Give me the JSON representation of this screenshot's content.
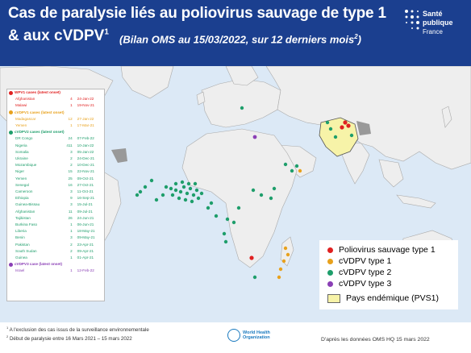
{
  "header": {
    "title_line1": "Cas de paralysie liés au poliovirus sauvage de type 1",
    "title_line2": "& aux cVDPV",
    "title_sup": "1",
    "subtitle": "(Bilan OMS au 15/03/2022, sur 12 derniers mois",
    "subtitle_sup": "2",
    "subtitle_end": ")",
    "logo": {
      "line1": "Santé",
      "line2": "publique",
      "line3": "France"
    }
  },
  "colors": {
    "header_bg": "#1b3f8f",
    "wpv1": "#e02020",
    "cvdpv1": "#e8a11c",
    "cvdpv2": "#1e9e6b",
    "cvdpv3": "#8a3fb5",
    "endemic": "#f7f3a8"
  },
  "legend_left": {
    "sections": [
      {
        "key": "wpv1",
        "title": "WPV1 cases (latest onset)",
        "color": "#e02020",
        "rows": [
          [
            "Afghanistan",
            "4",
            "24-Jan-22"
          ],
          [
            "Malawi",
            "1",
            "19-Nov-21"
          ]
        ]
      },
      {
        "key": "cvdpv1",
        "title": "cVDPV1 cases (latest onset)",
        "color": "#e8a11c",
        "rows": [
          [
            "Madagascar",
            "12",
            "27-Jan-22"
          ],
          [
            "Yemen",
            "1",
            "17-Mar-21"
          ]
        ]
      },
      {
        "key": "cvdpv2",
        "title": "cVDPV2 cases (latest onset)",
        "color": "#1e9e6b",
        "rows": [
          [
            "DR Congo",
            "24",
            "07-Feb-22"
          ],
          [
            "Nigeria",
            "411",
            "10-Jan-22"
          ],
          [
            "Somalia",
            "3",
            "05-Jan-22"
          ],
          [
            "Ukraine",
            "2",
            "24-Dec-21"
          ],
          [
            "Mozambique",
            "2",
            "10-Dec-21"
          ],
          [
            "Niger",
            "15",
            "22-Nov-21"
          ],
          [
            "Yemen",
            "25",
            "09-Oct-21"
          ],
          [
            "Senegal",
            "16",
            "27-Oct-21"
          ],
          [
            "Cameroon",
            "3",
            "11-Oct-21"
          ],
          [
            "Ethiopia",
            "9",
            "16-Sep-21"
          ],
          [
            "Guinea-Bissau",
            "3",
            "15-Jul-21"
          ],
          [
            "Afghanistan",
            "11",
            "09-Jul-21"
          ],
          [
            "Tajikistan",
            "26",
            "24-Jun-21"
          ],
          [
            "Burkina Faso",
            "1",
            "06-Jun-21"
          ],
          [
            "Liberia",
            "1",
            "18-May-21"
          ],
          [
            "Benin",
            "3",
            "09-May-21"
          ],
          [
            "Pakistan",
            "2",
            "23-Apr-21"
          ],
          [
            "South Sudan",
            "2",
            "09-Apr-21"
          ],
          [
            "Guinea",
            "1",
            "01-Apr-21"
          ]
        ]
      },
      {
        "key": "cvdpv3",
        "title": "cVDPV3 case (latest onset)",
        "color": "#8a3fb5",
        "rows": [
          [
            "Israel",
            "1",
            "12-Feb-22"
          ]
        ]
      }
    ]
  },
  "legend_right": {
    "items": [
      {
        "label": "Poliovirus sauvage type 1",
        "color": "#e02020"
      },
      {
        "label": "cVDPV type 1",
        "color": "#e8a11c"
      },
      {
        "label": "cVDPV type 2",
        "color": "#1e9e6b"
      },
      {
        "label": "cVDPV type 3",
        "color": "#8a3fb5"
      }
    ],
    "endemic_label": "Pays endémique (PVS1)"
  },
  "footer": {
    "note1_sup": "1",
    "note1": "A l'exclusion des cas issus de la surveillance environnementale",
    "note2_sup": "2",
    "note2": "Début de paralysie entre 16 Mars 2021 – 15 mars 2022",
    "who_line1": "World Health",
    "who_line2": "Organization",
    "credit": "D'après les données OMS HQ 15 mars 2022"
  }
}
